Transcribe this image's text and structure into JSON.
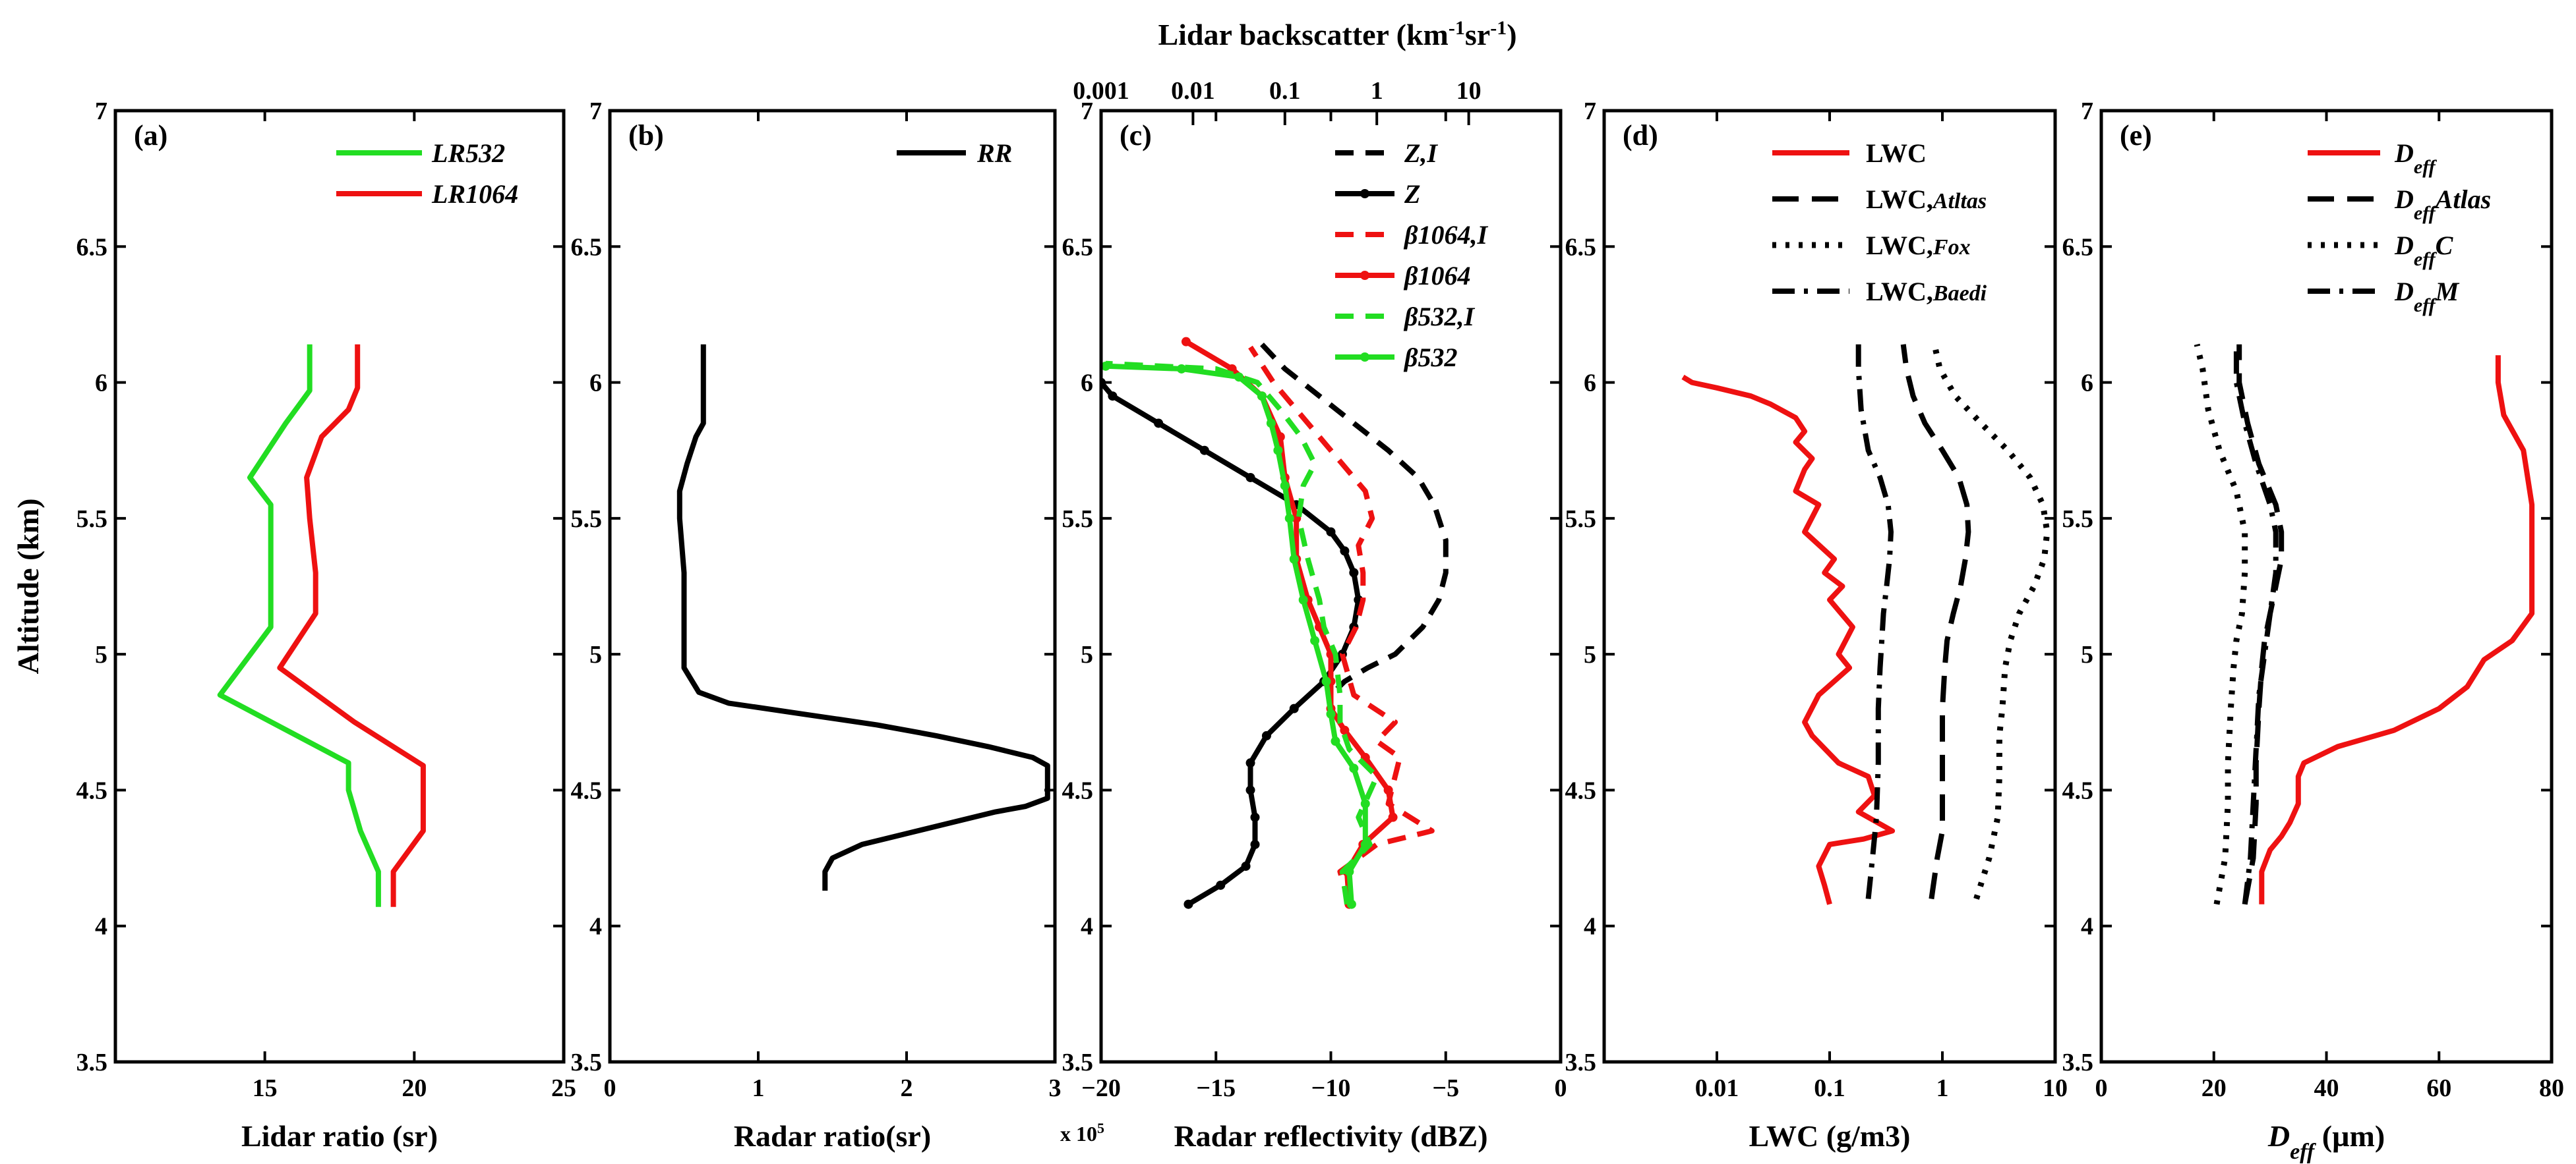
{
  "figure": {
    "y_label": "Altitude (km)",
    "y_ticks": [
      "3.5",
      "4",
      "4.5",
      "5",
      "5.5",
      "6",
      "6.5",
      "7"
    ],
    "top_axis_label": "Lidar backscatter (km⁻¹sr⁻¹)",
    "top_axis_ticks": [
      "0.001",
      "0.01",
      "0.1",
      "1",
      "10"
    ],
    "multiplier_label": "x 10⁵"
  },
  "chart_data": [
    {
      "panel": "a",
      "type": "line",
      "label": "(a)",
      "xlabel": "Lidar ratio (sr)",
      "ylabel": "Altitude (km)",
      "xlim": [
        10,
        25
      ],
      "ylim": [
        3.5,
        7
      ],
      "x_ticks": [
        "15",
        "20",
        "25"
      ],
      "x_tick_values": [
        15,
        20,
        25
      ],
      "x_scale": "linear",
      "series": [
        {
          "name": "LR532",
          "color": "#22dd22",
          "dash": "solid",
          "x": [
            18.8,
            18.8,
            18.2,
            17.8,
            17.8,
            13.5,
            15.2,
            15.2,
            15.2,
            14.5,
            15.7,
            16.5,
            16.5,
            16.5
          ],
          "y": [
            4.07,
            4.2,
            4.35,
            4.5,
            4.6,
            4.85,
            5.1,
            5.3,
            5.55,
            5.65,
            5.85,
            5.97,
            6.05,
            6.14
          ]
        },
        {
          "name": "LR1064",
          "color": "#ee1111",
          "dash": "solid",
          "x": [
            19.3,
            19.3,
            20.3,
            20.3,
            20.3,
            18.0,
            15.5,
            16.7,
            16.7,
            16.5,
            16.4,
            16.9,
            17.8,
            18.1,
            18.1
          ],
          "y": [
            4.07,
            4.2,
            4.35,
            4.45,
            4.59,
            4.75,
            4.95,
            5.15,
            5.3,
            5.5,
            5.65,
            5.8,
            5.9,
            5.98,
            6.14
          ]
        }
      ]
    },
    {
      "panel": "b",
      "type": "line",
      "label": "(b)",
      "xlabel": "Radar ratio(sr)",
      "ylabel": "Altitude (km)",
      "xlim": [
        0,
        3
      ],
      "ylim": [
        3.5,
        7
      ],
      "x_ticks": [
        "0",
        "1",
        "2",
        "3"
      ],
      "x_tick_values": [
        0,
        1,
        2,
        3
      ],
      "x_scale": "linear",
      "x_multiplier": "x 10^5",
      "series": [
        {
          "name": "RR",
          "color": "#000000",
          "dash": "solid",
          "x": [
            1.45,
            1.45,
            1.5,
            1.7,
            2.0,
            2.3,
            2.6,
            2.8,
            2.95,
            2.95,
            2.85,
            2.55,
            2.2,
            1.8,
            1.3,
            0.8,
            0.6,
            0.5,
            0.5,
            0.5,
            0.47,
            0.47,
            0.52,
            0.58,
            0.63,
            0.63,
            0.63
          ],
          "y": [
            4.13,
            4.2,
            4.25,
            4.3,
            4.34,
            4.38,
            4.42,
            4.44,
            4.47,
            4.59,
            4.62,
            4.66,
            4.7,
            4.74,
            4.78,
            4.82,
            4.86,
            4.95,
            5.1,
            5.3,
            5.5,
            5.6,
            5.7,
            5.8,
            5.85,
            6.0,
            6.14
          ]
        }
      ]
    },
    {
      "panel": "c",
      "type": "line",
      "label": "(c)",
      "xlabel": "Radar reflectivity (dBZ)",
      "ylabel": "Altitude (km)",
      "xlim": [
        -20,
        0
      ],
      "ylim": [
        3.5,
        7
      ],
      "x_ticks": [
        "−20",
        "−15",
        "−10",
        "−5",
        "0"
      ],
      "x_tick_values": [
        -20,
        -15,
        -10,
        -5,
        0
      ],
      "x_scale": "linear",
      "top_axis": {
        "label": "Lidar backscatter (km^-1 sr^-1)",
        "ticks": [
          "0.001",
          "0.01",
          "0.1",
          "1",
          "10"
        ],
        "scale": "log"
      },
      "series": [
        {
          "name": "Z,I",
          "color": "#000000",
          "dash": "dashed",
          "x": [
            -13.0,
            -12.0,
            -10.5,
            -9.0,
            -7.5,
            -6.2,
            -5.5,
            -5.0,
            -5.0,
            -5.3,
            -6.0,
            -7.2,
            -8.4,
            -9.4,
            -10.0
          ],
          "y": [
            6.14,
            6.05,
            5.95,
            5.85,
            5.75,
            5.65,
            5.55,
            5.42,
            5.3,
            5.2,
            5.1,
            5.0,
            4.95,
            4.9,
            4.85
          ]
        },
        {
          "name": "Z",
          "color": "#000000",
          "dash": "solid",
          "marker": "dot",
          "x": [
            -16.2,
            -14.8,
            -13.7,
            -13.3,
            -13.3,
            -13.5,
            -13.5,
            -12.8,
            -11.6,
            -10.3,
            -9.5,
            -9.0,
            -8.8,
            -9.0,
            -9.4,
            -10.0,
            -11.5,
            -13.5,
            -15.5,
            -17.5,
            -19.5,
            -20.0
          ],
          "y": [
            4.08,
            4.15,
            4.22,
            4.3,
            4.4,
            4.5,
            4.6,
            4.7,
            4.8,
            4.9,
            5.0,
            5.1,
            5.2,
            5.3,
            5.38,
            5.45,
            5.55,
            5.65,
            5.75,
            5.85,
            5.95,
            6.0
          ]
        },
        {
          "name": "β1064,I",
          "color": "#ee1111",
          "dash": "dashed",
          "x": [
            -9.2,
            -9.6,
            -8.0,
            -5.6,
            -7.5,
            -7.0,
            -8.0,
            -7.2,
            -9.0,
            -9.5,
            -8.9,
            -8.6,
            -8.6,
            -8.8,
            -8.2,
            -8.5,
            -9.5,
            -10.5,
            -11.5,
            -12.5,
            -13.5
          ],
          "y": [
            4.08,
            4.2,
            4.3,
            4.35,
            4.45,
            4.62,
            4.68,
            4.75,
            4.85,
            5.0,
            5.1,
            5.2,
            5.3,
            5.4,
            5.5,
            5.6,
            5.7,
            5.8,
            5.9,
            6.0,
            6.13
          ]
        },
        {
          "name": "β1064",
          "color": "#ee1111",
          "dash": "solid",
          "marker": "dot",
          "x": [
            -9.2,
            -9.3,
            -8.6,
            -7.3,
            -7.5,
            -8.5,
            -9.4,
            -10.0,
            -10.0,
            -10.0,
            -10.5,
            -11.0,
            -11.5,
            -11.5,
            -12.0,
            -12.2,
            -13.0,
            -14.3,
            -16.3
          ],
          "y": [
            4.08,
            4.2,
            4.3,
            4.4,
            4.5,
            4.62,
            4.72,
            4.8,
            4.9,
            5.0,
            5.1,
            5.2,
            5.35,
            5.5,
            5.65,
            5.8,
            5.95,
            6.05,
            6.15
          ]
        },
        {
          "name": "β532,I",
          "color": "#22dd22",
          "dash": "dashed",
          "x": [
            -9.3,
            -9.5,
            -8.3,
            -8.8,
            -8.0,
            -9.2,
            -9.6,
            -9.6,
            -9.8,
            -10.3,
            -10.5,
            -11.0,
            -11.4,
            -11.2,
            -10.7,
            -11.3,
            -12.2,
            -13.2,
            -15.0,
            -19.8
          ],
          "y": [
            4.08,
            4.2,
            4.3,
            4.4,
            4.55,
            4.65,
            4.75,
            4.85,
            5.0,
            5.1,
            5.2,
            5.35,
            5.5,
            5.62,
            5.7,
            5.8,
            5.9,
            6.0,
            6.05,
            6.07
          ]
        },
        {
          "name": "β532",
          "color": "#22dd22",
          "dash": "solid",
          "marker": "dot",
          "x": [
            -9.1,
            -9.2,
            -8.5,
            -8.5,
            -9.0,
            -9.8,
            -10.0,
            -10.2,
            -10.7,
            -11.2,
            -11.6,
            -11.8,
            -12.0,
            -12.3,
            -12.6,
            -13.0,
            -14.0,
            -16.5,
            -19.8
          ],
          "y": [
            4.08,
            4.2,
            4.3,
            4.45,
            4.58,
            4.68,
            4.78,
            4.9,
            5.05,
            5.2,
            5.35,
            5.5,
            5.62,
            5.75,
            5.85,
            5.95,
            6.02,
            6.05,
            6.06
          ]
        }
      ]
    },
    {
      "panel": "d",
      "type": "line",
      "label": "(d)",
      "xlabel": "LWC (g/m3)",
      "ylabel": "Altitude (km)",
      "xlim": [
        0.001,
        10
      ],
      "ylim": [
        3.5,
        7
      ],
      "x_ticks": [
        "0.01",
        "0.1",
        "1",
        "10"
      ],
      "x_tick_values": [
        0.01,
        0.1,
        1,
        10
      ],
      "x_scale": "log",
      "series": [
        {
          "name": "LWC",
          "color": "#ee1111",
          "dash": "solid",
          "x": [
            0.1,
            0.09,
            0.08,
            0.1,
            0.2,
            0.36,
            0.18,
            0.25,
            0.22,
            0.12,
            0.07,
            0.06,
            0.08,
            0.15,
            0.12,
            0.16,
            0.1,
            0.13,
            0.09,
            0.11,
            0.06,
            0.08,
            0.05,
            0.06,
            0.07,
            0.05,
            0.06,
            0.05,
            0.03,
            0.02,
            0.01,
            0.006,
            0.005
          ],
          "y": [
            4.08,
            4.15,
            4.22,
            4.3,
            4.32,
            4.35,
            4.42,
            4.48,
            4.55,
            4.6,
            4.7,
            4.75,
            4.85,
            4.95,
            5.0,
            5.1,
            5.2,
            5.25,
            5.3,
            5.35,
            5.45,
            5.55,
            5.6,
            5.68,
            5.72,
            5.78,
            5.82,
            5.87,
            5.92,
            5.95,
            5.98,
            6.0,
            6.02
          ]
        },
        {
          "name": "LWC,Atltas",
          "color": "#000000",
          "dash": "longdash",
          "x": [
            0.8,
            0.9,
            1.0,
            1.0,
            1.0,
            1.0,
            1.05,
            1.1,
            1.25,
            1.45,
            1.6,
            1.7,
            1.65,
            1.4,
            1.0,
            0.7,
            0.55,
            0.48,
            0.45
          ],
          "y": [
            4.1,
            4.25,
            4.35,
            4.5,
            4.65,
            4.8,
            4.95,
            5.05,
            5.15,
            5.25,
            5.35,
            5.45,
            5.55,
            5.65,
            5.75,
            5.85,
            5.95,
            6.05,
            6.14
          ]
        },
        {
          "name": "LWC,Fox",
          "color": "#000000",
          "dash": "dotted",
          "x": [
            2.0,
            2.6,
            3.1,
            3.2,
            3.2,
            3.4,
            3.6,
            4.0,
            4.8,
            6.5,
            8.0,
            8.5,
            7.8,
            6.0,
            3.8,
            2.2,
            1.3,
            0.95,
            0.85
          ],
          "y": [
            4.1,
            4.25,
            4.4,
            4.55,
            4.7,
            4.8,
            4.95,
            5.05,
            5.15,
            5.25,
            5.35,
            5.45,
            5.55,
            5.65,
            5.75,
            5.85,
            5.95,
            6.05,
            6.14
          ]
        },
        {
          "name": "LWC,Baedi",
          "color": "#000000",
          "dash": "dashdot",
          "x": [
            0.22,
            0.24,
            0.26,
            0.27,
            0.27,
            0.28,
            0.29,
            0.3,
            0.32,
            0.34,
            0.35,
            0.33,
            0.28,
            0.22,
            0.19,
            0.18,
            0.18
          ],
          "y": [
            4.1,
            4.25,
            4.4,
            4.6,
            4.8,
            4.95,
            5.05,
            5.15,
            5.25,
            5.35,
            5.45,
            5.55,
            5.65,
            5.75,
            5.9,
            6.05,
            6.14
          ]
        }
      ]
    },
    {
      "panel": "e",
      "type": "line",
      "label": "(e)",
      "xlabel": "Deff (µm)",
      "ylabel": "Altitude (km)",
      "xlim": [
        0,
        80
      ],
      "ylim": [
        3.5,
        7
      ],
      "x_ticks": [
        "0",
        "20",
        "40",
        "60",
        "80"
      ],
      "x_tick_values": [
        0,
        20,
        40,
        60,
        80
      ],
      "x_scale": "linear",
      "series": [
        {
          "name": "Deff",
          "color": "#ee1111",
          "dash": "solid",
          "x": [
            28.5,
            28.5,
            30.0,
            32.0,
            33.5,
            35.0,
            35.0,
            36.0,
            42.0,
            52.0,
            60.0,
            65.0,
            68.0,
            73.0,
            76.5,
            76.5,
            76.5,
            75.0,
            71.5,
            70.5,
            70.5
          ],
          "y": [
            4.08,
            4.2,
            4.28,
            4.33,
            4.38,
            4.45,
            4.55,
            4.6,
            4.66,
            4.72,
            4.8,
            4.88,
            4.98,
            5.05,
            5.15,
            5.35,
            5.55,
            5.75,
            5.88,
            6.0,
            6.1
          ]
        },
        {
          "name": "DeffAtlas",
          "color": "#000000",
          "dash": "longdash",
          "x": [
            25.5,
            27.0,
            27.5,
            27.5,
            28.0,
            28.5,
            29.0,
            30.0,
            31.0,
            32.0,
            32.0,
            31.0,
            28.0,
            26.0,
            24.5,
            24.5
          ],
          "y": [
            4.08,
            4.25,
            4.45,
            4.6,
            4.8,
            4.95,
            5.05,
            5.15,
            5.25,
            5.35,
            5.45,
            5.55,
            5.7,
            5.85,
            6.0,
            6.14
          ]
        },
        {
          "name": "DeffC",
          "color": "#000000",
          "dash": "dotted",
          "x": [
            20.5,
            22.0,
            22.5,
            22.5,
            23.0,
            23.5,
            24.0,
            25.0,
            25.5,
            25.5,
            24.0,
            21.0,
            19.0,
            18.0,
            17.0
          ],
          "y": [
            4.08,
            4.25,
            4.45,
            4.6,
            4.8,
            4.95,
            5.05,
            5.15,
            5.3,
            5.45,
            5.6,
            5.75,
            5.9,
            6.05,
            6.14
          ]
        },
        {
          "name": "DeffM",
          "color": "#000000",
          "dash": "dashdot",
          "x": [
            25.5,
            26.5,
            27.0,
            27.5,
            28.0,
            29.0,
            30.0,
            31.0,
            31.0,
            30.0,
            27.5,
            25.5,
            24.0,
            24.0
          ],
          "y": [
            4.08,
            4.25,
            4.45,
            4.65,
            4.85,
            5.0,
            5.15,
            5.3,
            5.45,
            5.55,
            5.7,
            5.85,
            6.0,
            6.14
          ]
        }
      ]
    }
  ]
}
